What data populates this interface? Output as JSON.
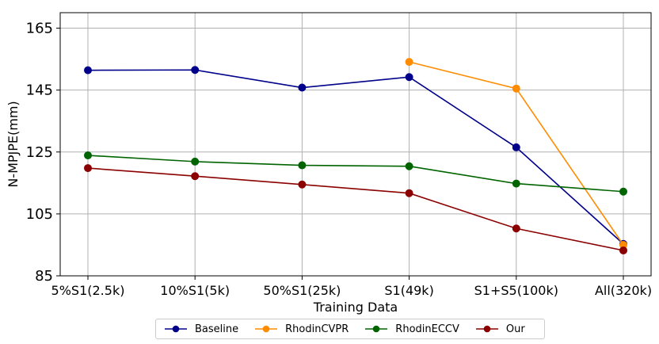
{
  "chart_data": {
    "type": "line",
    "title": "",
    "xlabel": "Training Data",
    "ylabel": "N-MPJPE(mm)",
    "categories": [
      "5%S1(2.5k)",
      "10%S1(5k)",
      "50%S1(25k)",
      "S1(49k)",
      "S1+S5(100k)",
      "All(320k)"
    ],
    "ylim": [
      85,
      170
    ],
    "yticks": [
      85,
      105,
      125,
      145,
      165
    ],
    "grid": true,
    "legend": "bottom-center",
    "series": [
      {
        "name": "Baseline",
        "color": "#00008b",
        "values": [
          151.4,
          151.5,
          145.8,
          149.2,
          126.5,
          95.3
        ]
      },
      {
        "name": "RhodinCVPR",
        "color": "#ff8c00",
        "values": [
          null,
          null,
          null,
          154.1,
          145.5,
          95.0
        ]
      },
      {
        "name": "RhodinECCV",
        "color": "#006400",
        "values": [
          123.9,
          121.9,
          120.7,
          120.4,
          114.8,
          112.2
        ]
      },
      {
        "name": "Our",
        "color": "#8b0000",
        "values": [
          119.8,
          117.2,
          114.5,
          111.7,
          100.3,
          93.2
        ]
      }
    ]
  }
}
